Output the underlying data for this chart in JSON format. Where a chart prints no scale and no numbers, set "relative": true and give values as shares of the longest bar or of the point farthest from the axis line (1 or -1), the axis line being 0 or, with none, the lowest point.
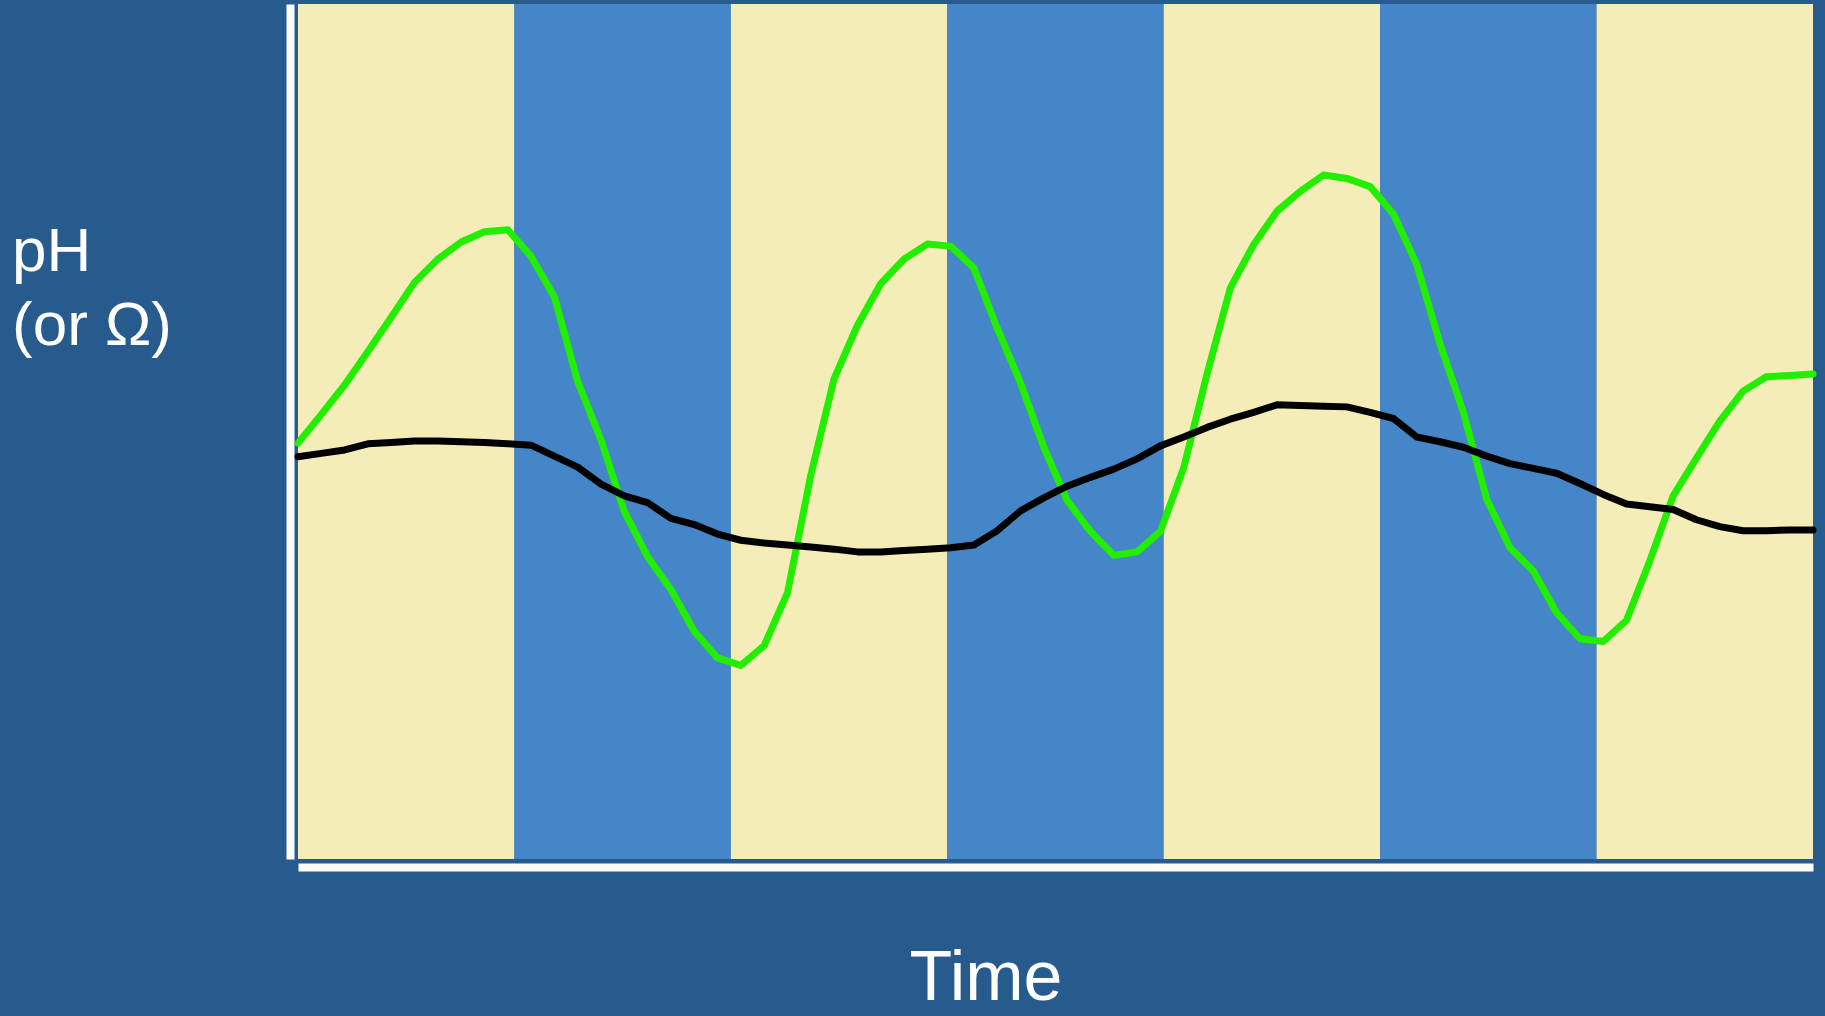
{
  "chart_data": {
    "type": "line",
    "relative": true,
    "xlabel": "Time",
    "ylabel": "pH\n(or Ω)",
    "tick_labels": false,
    "grid": false,
    "marker": "none",
    "line_style": "solid",
    "categories": [
      null,
      null,
      null,
      null,
      null,
      null,
      null,
      null,
      null,
      null,
      null,
      null,
      null,
      null,
      null,
      null,
      null,
      null,
      null,
      null,
      null,
      null,
      null,
      null,
      null,
      null,
      null,
      null,
      null,
      null,
      null,
      null,
      null,
      null,
      null,
      null,
      null,
      null,
      null,
      null,
      null,
      null,
      null,
      null,
      null,
      null,
      null,
      null,
      null,
      null,
      null,
      null,
      null,
      null,
      null,
      null,
      null,
      null,
      null,
      null,
      null,
      null,
      null,
      null,
      null,
      null
    ],
    "series": [
      {
        "color": "#22ee00",
        "values": [
          0.608,
          0.65,
          0.693,
          0.742,
          0.792,
          0.843,
          0.877,
          0.902,
          0.917,
          0.92,
          0.881,
          0.822,
          0.698,
          0.613,
          0.508,
          0.442,
          0.394,
          0.333,
          0.294,
          0.283,
          0.312,
          0.389,
          0.561,
          0.702,
          0.78,
          0.841,
          0.877,
          0.899,
          0.896,
          0.864,
          0.776,
          0.696,
          0.602,
          0.524,
          0.479,
          0.444,
          0.449,
          0.479,
          0.572,
          0.709,
          0.835,
          0.898,
          0.947,
          0.976,
          1,
          0.995,
          0.983,
          0.943,
          0.869,
          0.753,
          0.653,
          0.526,
          0.455,
          0.421,
          0.36,
          0.322,
          0.318,
          0.349,
          0.436,
          0.531,
          0.586,
          0.64,
          0.684,
          0.705,
          0.707,
          0.709
        ]
      },
      {
        "color": "#000000",
        "values": [
          0.588,
          0.593,
          0.598,
          0.607,
          0.609,
          0.611,
          0.611,
          0.61,
          0.609,
          0.607,
          0.605,
          0.589,
          0.573,
          0.548,
          0.531,
          0.521,
          0.498,
          0.489,
          0.475,
          0.466,
          0.462,
          0.459,
          0.456,
          0.453,
          0.449,
          0.449,
          0.451,
          0.453,
          0.455,
          0.459,
          0.48,
          0.509,
          0.528,
          0.545,
          0.558,
          0.57,
          0.585,
          0.604,
          0.617,
          0.631,
          0.643,
          0.653,
          0.664,
          0.663,
          0.662,
          0.661,
          0.653,
          0.644,
          0.617,
          0.61,
          0.602,
          0.589,
          0.578,
          0.571,
          0.564,
          0.549,
          0.533,
          0.519,
          0.515,
          0.511,
          0.496,
          0.486,
          0.48,
          0.48,
          0.481,
          0.481
        ]
      }
    ]
  }
}
